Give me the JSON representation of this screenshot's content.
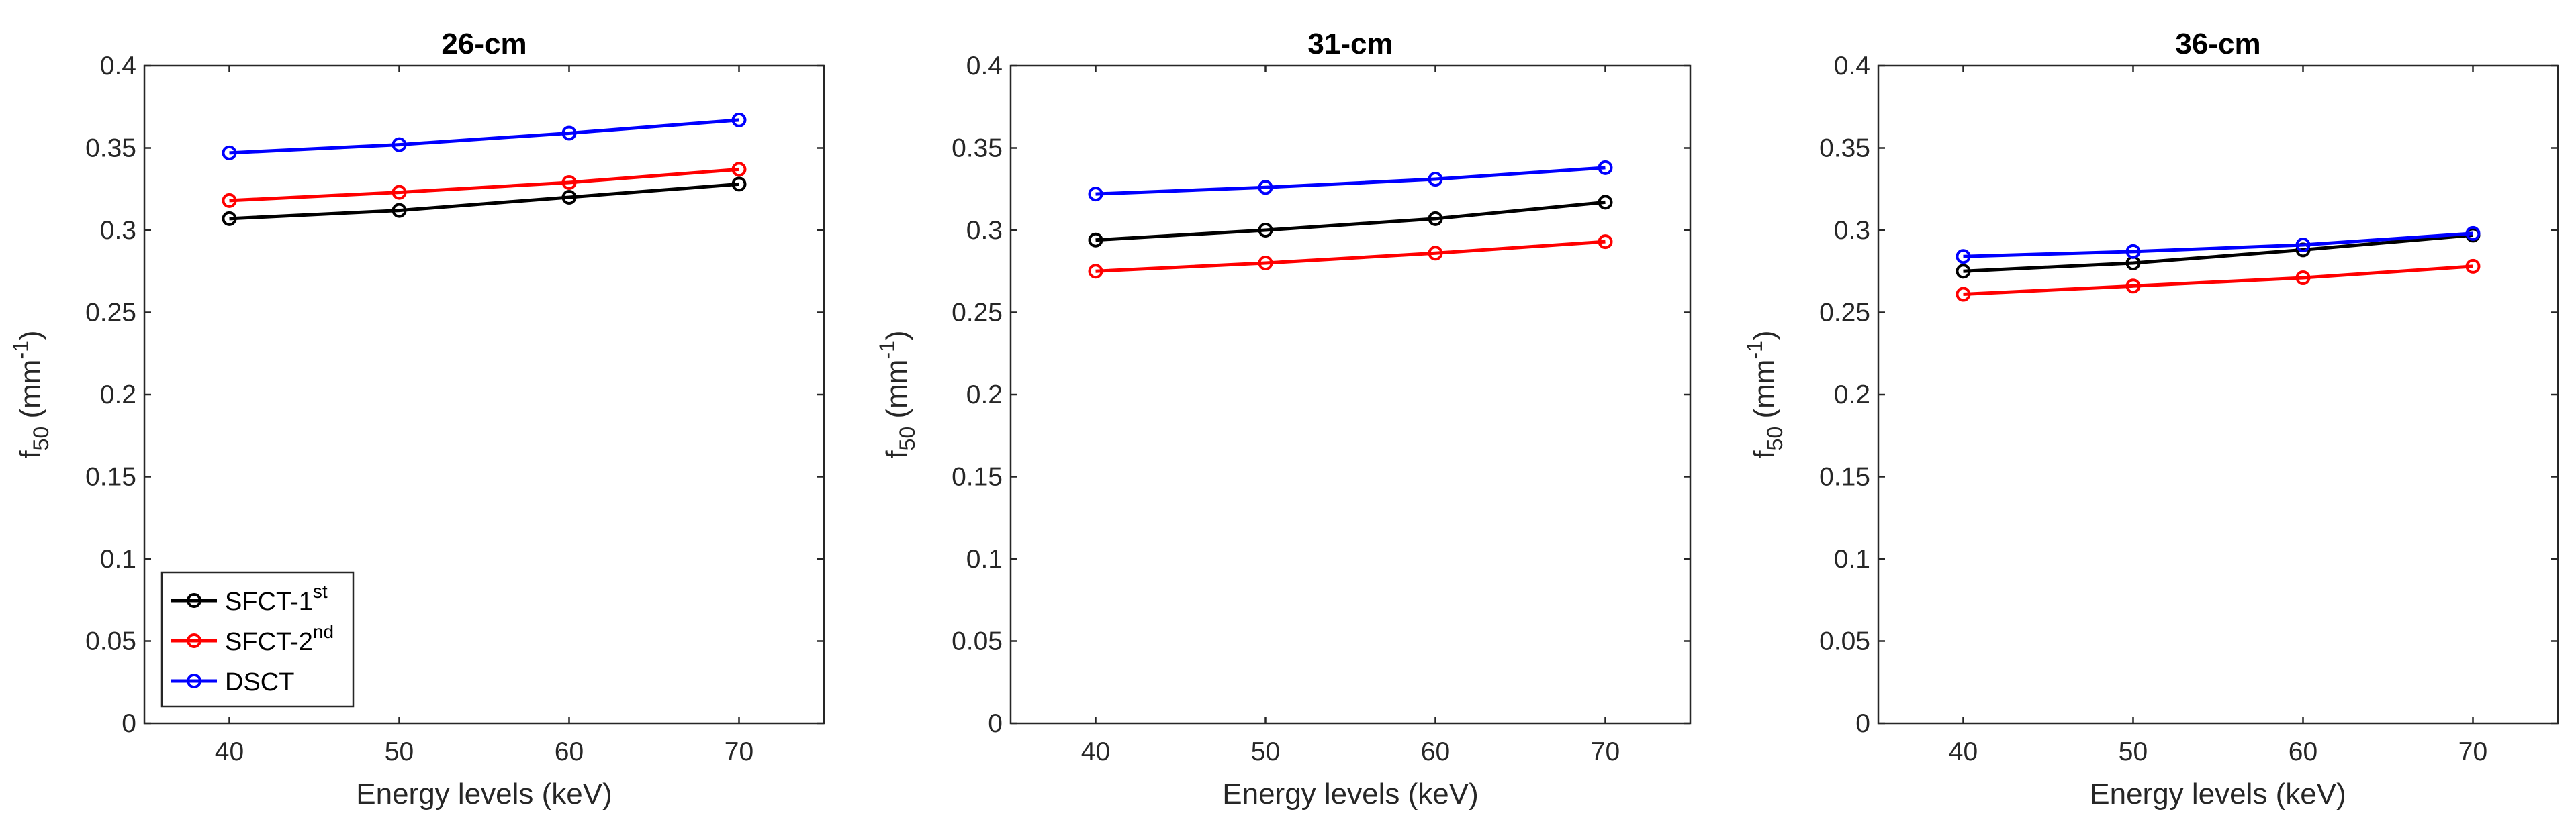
{
  "figure": {
    "xlabel": "Energy levels (keV)",
    "ylabel_base": "f",
    "ylabel_sub": "50",
    "ylabel_unit_open": " (mm",
    "ylabel_sup": "-1",
    "ylabel_unit_close": ")"
  },
  "legend": [
    {
      "base": "SFCT-1",
      "sup": "st",
      "color": "#000000"
    },
    {
      "base": "SFCT-2",
      "sup": "nd",
      "color": "#ff0000"
    },
    {
      "base": "DSCT",
      "sup": "",
      "color": "#0000ff"
    }
  ],
  "chart_data": [
    {
      "type": "line",
      "title": "26-cm",
      "xlabel": "Energy levels (keV)",
      "ylabel": "f50 (mm-1)",
      "xlim": [
        35,
        75
      ],
      "ylim": [
        0,
        0.4
      ],
      "xticks": [
        40,
        50,
        60,
        70
      ],
      "xtick_labels": [
        "40",
        "50",
        "60",
        "70"
      ],
      "yticks": [
        0,
        0.05,
        0.1,
        0.15,
        0.2,
        0.25,
        0.3,
        0.35,
        0.4
      ],
      "ytick_labels": [
        "0",
        "0.05",
        "0.1",
        "0.15",
        "0.2",
        "0.25",
        "0.3",
        "0.35",
        "0.4"
      ],
      "x": [
        40,
        50,
        60,
        70
      ],
      "legend_location": "bottom-left",
      "series": [
        {
          "name": "SFCT-1st",
          "color": "#000000",
          "values": [
            0.307,
            0.312,
            0.32,
            0.328
          ]
        },
        {
          "name": "SFCT-2nd",
          "color": "#ff0000",
          "values": [
            0.318,
            0.323,
            0.329,
            0.337
          ]
        },
        {
          "name": "DSCT",
          "color": "#0000ff",
          "values": [
            0.347,
            0.352,
            0.359,
            0.367
          ]
        }
      ]
    },
    {
      "type": "line",
      "title": "31-cm",
      "xlabel": "Energy levels (keV)",
      "ylabel": "f50 (mm-1)",
      "xlim": [
        35,
        75
      ],
      "ylim": [
        0,
        0.4
      ],
      "xticks": [
        40,
        50,
        60,
        70
      ],
      "xtick_labels": [
        "40",
        "50",
        "60",
        "70"
      ],
      "yticks": [
        0,
        0.05,
        0.1,
        0.15,
        0.2,
        0.25,
        0.3,
        0.35,
        0.4
      ],
      "ytick_labels": [
        "0",
        "0.05",
        "0.1",
        "0.15",
        "0.2",
        "0.25",
        "0.3",
        "0.35",
        "0.4"
      ],
      "x": [
        40,
        50,
        60,
        70
      ],
      "series": [
        {
          "name": "SFCT-1st",
          "color": "#000000",
          "values": [
            0.294,
            0.3,
            0.307,
            0.317
          ]
        },
        {
          "name": "SFCT-2nd",
          "color": "#ff0000",
          "values": [
            0.275,
            0.28,
            0.286,
            0.293
          ]
        },
        {
          "name": "DSCT",
          "color": "#0000ff",
          "values": [
            0.322,
            0.326,
            0.331,
            0.338
          ]
        }
      ]
    },
    {
      "type": "line",
      "title": "36-cm",
      "xlabel": "Energy levels (keV)",
      "ylabel": "f50 (mm-1)",
      "xlim": [
        35,
        75
      ],
      "ylim": [
        0,
        0.4
      ],
      "xticks": [
        40,
        50,
        60,
        70
      ],
      "xtick_labels": [
        "40",
        "50",
        "60",
        "70"
      ],
      "yticks": [
        0,
        0.05,
        0.1,
        0.15,
        0.2,
        0.25,
        0.3,
        0.35,
        0.4
      ],
      "ytick_labels": [
        "0",
        "0.05",
        "0.1",
        "0.15",
        "0.2",
        "0.25",
        "0.3",
        "0.35",
        "0.4"
      ],
      "x": [
        40,
        50,
        60,
        70
      ],
      "series": [
        {
          "name": "SFCT-1st",
          "color": "#000000",
          "values": [
            0.275,
            0.28,
            0.288,
            0.297
          ]
        },
        {
          "name": "SFCT-2nd",
          "color": "#ff0000",
          "values": [
            0.261,
            0.266,
            0.271,
            0.278
          ]
        },
        {
          "name": "DSCT",
          "color": "#0000ff",
          "values": [
            0.284,
            0.287,
            0.291,
            0.298
          ]
        }
      ]
    }
  ]
}
